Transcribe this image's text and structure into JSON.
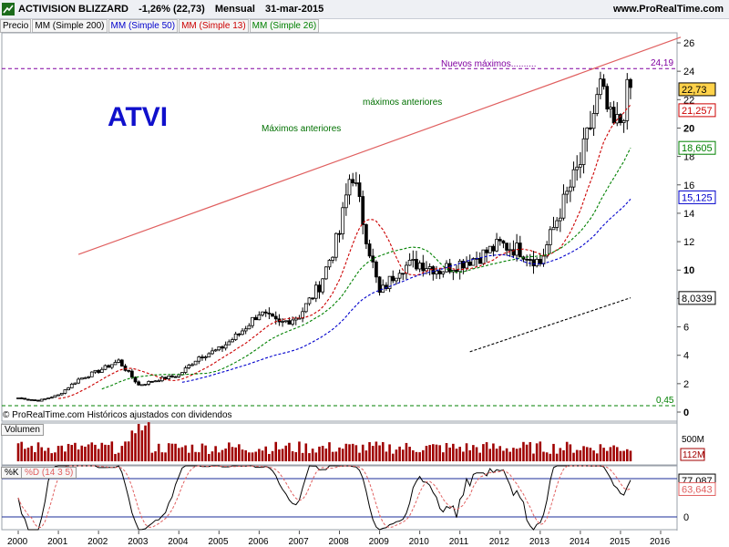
{
  "header": {
    "symbol": "ACTIVISION BLIZZARD",
    "change": "-1,26% (22,73)",
    "period": "Mensual",
    "date": "31-mar-2015",
    "site": "www.ProRealTime.com"
  },
  "legend": [
    {
      "label": "Precio",
      "color": "#000000"
    },
    {
      "label": "MM (Simple 200)",
      "color": "#000000"
    },
    {
      "label": "MM (Simple 50)",
      "color": "#0000cc"
    },
    {
      "label": "MM (Simple 13)",
      "color": "#cc0000"
    },
    {
      "label": "MM (Simple 26)",
      "color": "#008000"
    }
  ],
  "annotations": {
    "ticker": "ATVI",
    "new_highs": "Nuevos máximos..........",
    "prev_highs_1": "Máximos anteriores",
    "prev_highs_2": "máximos anteriores",
    "resistance_value": "24,19",
    "support_value": "0,45",
    "footnote": "© ProRealTime.com  Históricos ajustados con dividendos"
  },
  "price_tags": [
    {
      "label": "22,73",
      "color": "#000000",
      "bg": "#ffd24a",
      "value": 22.73
    },
    {
      "label": "21,257",
      "color": "#cc0000",
      "value": 21.257
    },
    {
      "label": "18,605",
      "color": "#008000",
      "value": 18.605
    },
    {
      "label": "15,125",
      "color": "#0000cc",
      "value": 15.125
    },
    {
      "label": "8,0339",
      "color": "#000000",
      "value": 8.0339
    }
  ],
  "volume_panel": {
    "label": "Volumen",
    "tick_top": "500M",
    "last_label": "112M"
  },
  "stoch_panel": {
    "label_k": "%K",
    "label_d": "%D (14 3 5)",
    "k_value": "77,087",
    "d_value": "63,643",
    "upper_level": 80,
    "lower_level": 20
  },
  "colors": {
    "candle": "#000000",
    "ma200": "#000000",
    "ma50": "#0000cc",
    "ma13": "#cc0000",
    "ma26": "#008000",
    "trend": "#e06060",
    "resistance": "#8000a0",
    "support": "#008000",
    "volume": "#a00000"
  },
  "chart_data": {
    "type": "candlestick",
    "period": "monthly",
    "x_ticks": [
      "2000",
      "2001",
      "2002",
      "2003",
      "2004",
      "2005",
      "2006",
      "2007",
      "2008",
      "2009",
      "2010",
      "2011",
      "2012",
      "2013",
      "2014",
      "2015",
      "2016"
    ],
    "y_ticks": [
      0,
      2,
      4,
      6,
      8,
      10,
      12,
      14,
      16,
      18,
      20,
      22,
      24,
      26
    ],
    "ylim": [
      0,
      27
    ],
    "horizontal_lines": [
      24.19,
      0.45
    ],
    "trendline": [
      {
        "year": 2001.5,
        "price": 11.1
      },
      {
        "year": 2016.5,
        "price": 26.4
      }
    ],
    "closes_by_year": [
      {
        "year": 2000.0,
        "close": 1.0
      },
      {
        "year": 2000.5,
        "close": 0.8
      },
      {
        "year": 2001.0,
        "close": 1.2
      },
      {
        "year": 2001.5,
        "close": 2.3
      },
      {
        "year": 2002.0,
        "close": 2.9
      },
      {
        "year": 2002.5,
        "close": 3.6
      },
      {
        "year": 2003.0,
        "close": 1.9
      },
      {
        "year": 2003.5,
        "close": 2.3
      },
      {
        "year": 2004.0,
        "close": 2.6
      },
      {
        "year": 2004.5,
        "close": 3.9
      },
      {
        "year": 2005.0,
        "close": 4.4
      },
      {
        "year": 2005.5,
        "close": 5.5
      },
      {
        "year": 2006.0,
        "close": 7.0
      },
      {
        "year": 2006.5,
        "close": 6.2
      },
      {
        "year": 2007.0,
        "close": 6.8
      },
      {
        "year": 2007.5,
        "close": 8.9
      },
      {
        "year": 2008.0,
        "close": 12.6
      },
      {
        "year": 2008.3,
        "close": 17.2
      },
      {
        "year": 2008.7,
        "close": 12.0
      },
      {
        "year": 2009.0,
        "close": 8.3
      },
      {
        "year": 2009.5,
        "close": 10.2
      },
      {
        "year": 2010.0,
        "close": 10.5
      },
      {
        "year": 2010.5,
        "close": 10.0
      },
      {
        "year": 2011.0,
        "close": 10.5
      },
      {
        "year": 2011.5,
        "close": 11.0
      },
      {
        "year": 2012.0,
        "close": 11.8
      },
      {
        "year": 2012.5,
        "close": 11.4
      },
      {
        "year": 2013.0,
        "close": 10.5
      },
      {
        "year": 2013.5,
        "close": 14.2
      },
      {
        "year": 2014.0,
        "close": 17.5
      },
      {
        "year": 2014.5,
        "close": 22.8
      },
      {
        "year": 2014.8,
        "close": 20.0
      },
      {
        "year": 2015.0,
        "close": 20.5
      },
      {
        "year": 2015.2,
        "close": 22.73
      }
    ],
    "moving_averages": [
      {
        "name": "MM (Simple 13)",
        "last": 21.257
      },
      {
        "name": "MM (Simple 26)",
        "last": 18.605
      },
      {
        "name": "MM (Simple 50)",
        "last": 15.125
      },
      {
        "name": "MM (Simple 200)",
        "last": 8.0339
      }
    ],
    "stochastic": {
      "k_last": 77.087,
      "d_last": 63.643,
      "levels": [
        20,
        80
      ]
    }
  }
}
